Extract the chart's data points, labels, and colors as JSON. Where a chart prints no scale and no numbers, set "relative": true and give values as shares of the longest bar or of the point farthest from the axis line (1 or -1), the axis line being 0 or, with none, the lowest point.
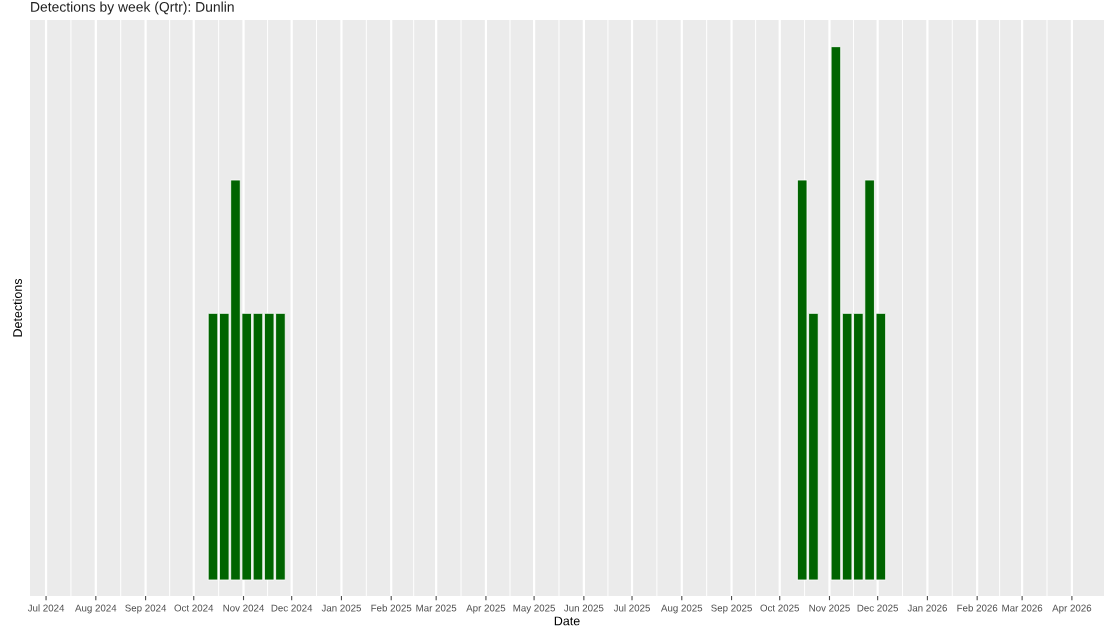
{
  "chart_data": {
    "type": "bar",
    "title": "Detections by week (Qrtr): Dunlin",
    "xlabel": "Date",
    "ylabel": "Detections",
    "x": [
      "2024-10-13",
      "2024-10-20",
      "2024-10-27",
      "2024-11-03",
      "2024-11-10",
      "2024-11-17",
      "2024-11-24",
      "2025-10-15",
      "2025-10-22",
      "2025-11-05",
      "2025-11-12",
      "2025-11-19",
      "2025-11-26",
      "2025-12-03"
    ],
    "values": [
      0.5,
      0.5,
      0.75,
      0.5,
      0.5,
      0.5,
      0.5,
      0.75,
      0.5,
      1,
      0.5,
      0.5,
      0.75,
      0.5
    ],
    "relative": true,
    "color": "#006400",
    "xlim": [
      "2024-06-21",
      "2026-04-21"
    ],
    "xticks": [
      {
        "value": "2024-07-01",
        "label": "Jul 2024"
      },
      {
        "value": "2024-08-01",
        "label": "Aug 2024"
      },
      {
        "value": "2024-09-01",
        "label": "Sep 2024"
      },
      {
        "value": "2024-10-01",
        "label": "Oct 2024"
      },
      {
        "value": "2024-11-01",
        "label": "Nov 2024"
      },
      {
        "value": "2024-12-01",
        "label": "Dec 2024"
      },
      {
        "value": "2025-01-01",
        "label": "Jan 2025"
      },
      {
        "value": "2025-02-01",
        "label": "Feb 2025"
      },
      {
        "value": "2025-03-01",
        "label": "Mar 2025"
      },
      {
        "value": "2025-04-01",
        "label": "Apr 2025"
      },
      {
        "value": "2025-05-01",
        "label": "May 2025"
      },
      {
        "value": "2025-06-01",
        "label": "Jun 2025"
      },
      {
        "value": "2025-07-01",
        "label": "Jul 2025"
      },
      {
        "value": "2025-08-01",
        "label": "Aug 2025"
      },
      {
        "value": "2025-09-01",
        "label": "Sep 2025"
      },
      {
        "value": "2025-10-01",
        "label": "Oct 2025"
      },
      {
        "value": "2025-11-01",
        "label": "Nov 2025"
      },
      {
        "value": "2025-12-01",
        "label": "Dec 2025"
      },
      {
        "value": "2026-01-01",
        "label": "Jan 2026"
      },
      {
        "value": "2026-02-01",
        "label": "Feb 2026"
      },
      {
        "value": "2026-03-01",
        "label": "Mar 2026"
      },
      {
        "value": "2026-04-01",
        "label": "Apr 2026"
      }
    ],
    "grid": "x"
  }
}
